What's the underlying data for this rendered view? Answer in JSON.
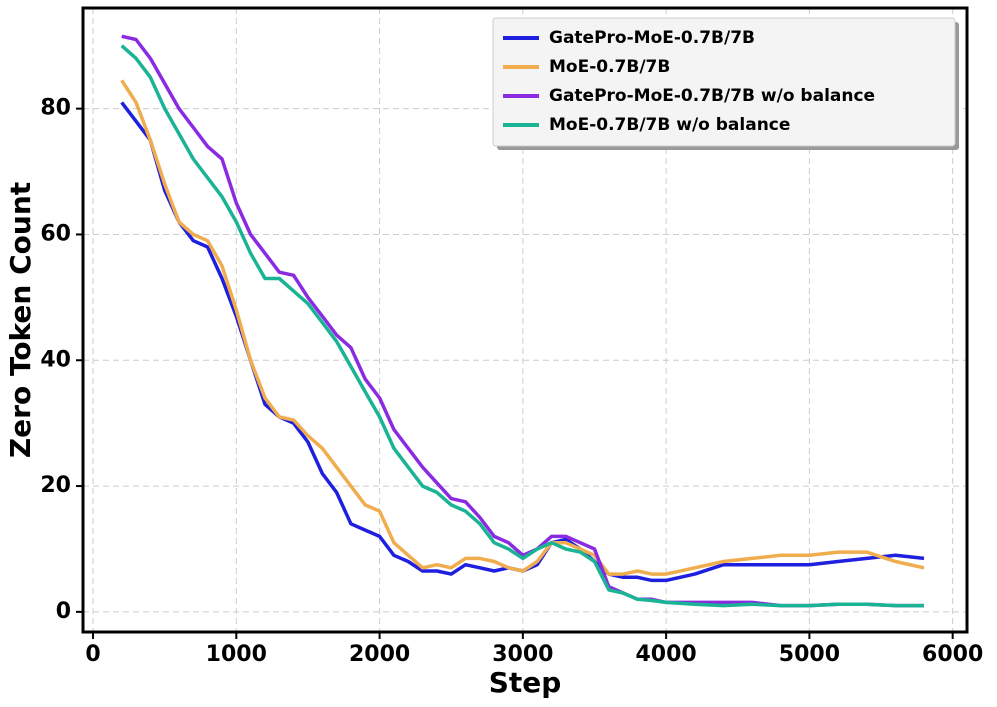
{
  "chart_data": {
    "type": "line",
    "xlabel": "Step",
    "ylabel": "Zero Token Count",
    "x": [
      200,
      300,
      400,
      500,
      600,
      700,
      800,
      900,
      1000,
      1100,
      1200,
      1300,
      1400,
      1500,
      1600,
      1700,
      1800,
      1900,
      2000,
      2100,
      2200,
      2300,
      2400,
      2500,
      2600,
      2700,
      2800,
      2900,
      3000,
      3100,
      3200,
      3300,
      3400,
      3500,
      3600,
      3700,
      3800,
      3900,
      4000,
      4200,
      4400,
      4600,
      4800,
      5000,
      5200,
      5400,
      5600,
      5800
    ],
    "series": [
      {
        "name": "GatePro-MoE-0.7B/7B",
        "color": "#1f1fe0",
        "values": [
          81,
          78,
          75,
          67,
          62,
          59,
          58,
          53,
          47,
          40,
          33,
          31,
          30,
          27,
          22,
          19,
          14,
          13,
          12,
          9,
          8,
          6.5,
          6.5,
          6,
          7.5,
          7,
          6.5,
          7,
          6.5,
          7.5,
          11,
          11.5,
          10,
          8,
          6,
          5.5,
          5.5,
          5,
          5,
          6,
          7.5,
          7.5,
          7.5,
          7.5,
          8,
          8.5,
          9,
          8.5
        ]
      },
      {
        "name": "MoE-0.7B/7B",
        "color": "#f0ad4e",
        "values": [
          84.5,
          81,
          75,
          68,
          62,
          60,
          59,
          55,
          48,
          40,
          34,
          31,
          30.5,
          28,
          26,
          23,
          20,
          17,
          16,
          11,
          9,
          7,
          7.5,
          7,
          8.5,
          8.5,
          8,
          7,
          6.5,
          8,
          11,
          11,
          10,
          9,
          6,
          6,
          6.5,
          6,
          6,
          7,
          8,
          8.5,
          9,
          9,
          9.5,
          9.5,
          8,
          7
        ]
      },
      {
        "name": "GatePro-MoE-0.7B/7B w/o balance",
        "color": "#8a2be2",
        "values": [
          91.5,
          91,
          88,
          84,
          80,
          77,
          74,
          72,
          65,
          60,
          57,
          54,
          53.5,
          50,
          47,
          44,
          42,
          37,
          34,
          29,
          26,
          23,
          20.5,
          18,
          17.5,
          15,
          12,
          11,
          9,
          10,
          12,
          12,
          11,
          10,
          4,
          3,
          2,
          2,
          1.5,
          1.5,
          1.5,
          1.5,
          1,
          1,
          1.2,
          1.2,
          1,
          1
        ]
      },
      {
        "name": "MoE-0.7B/7B w/o balance",
        "color": "#1ab394",
        "values": [
          90,
          88,
          85,
          80,
          76,
          72,
          69,
          66,
          62,
          57,
          53,
          53,
          51,
          49,
          46,
          43,
          39,
          35,
          31,
          26,
          23,
          20,
          19,
          17,
          16,
          14,
          11,
          10,
          8.5,
          10,
          11,
          10,
          9.5,
          8,
          3.5,
          3,
          2,
          1.8,
          1.5,
          1.2,
          1,
          1.2,
          1,
          1,
          1.2,
          1.2,
          1,
          1
        ]
      }
    ],
    "xlim": [
      -70,
      6100
    ],
    "xticks": [
      0,
      1000,
      2000,
      3000,
      4000,
      5000,
      6000
    ],
    "ylim": [
      -3.2,
      96
    ],
    "yticks": [
      0,
      20,
      40,
      60,
      80
    ],
    "grid": true,
    "legend": "upper right"
  }
}
